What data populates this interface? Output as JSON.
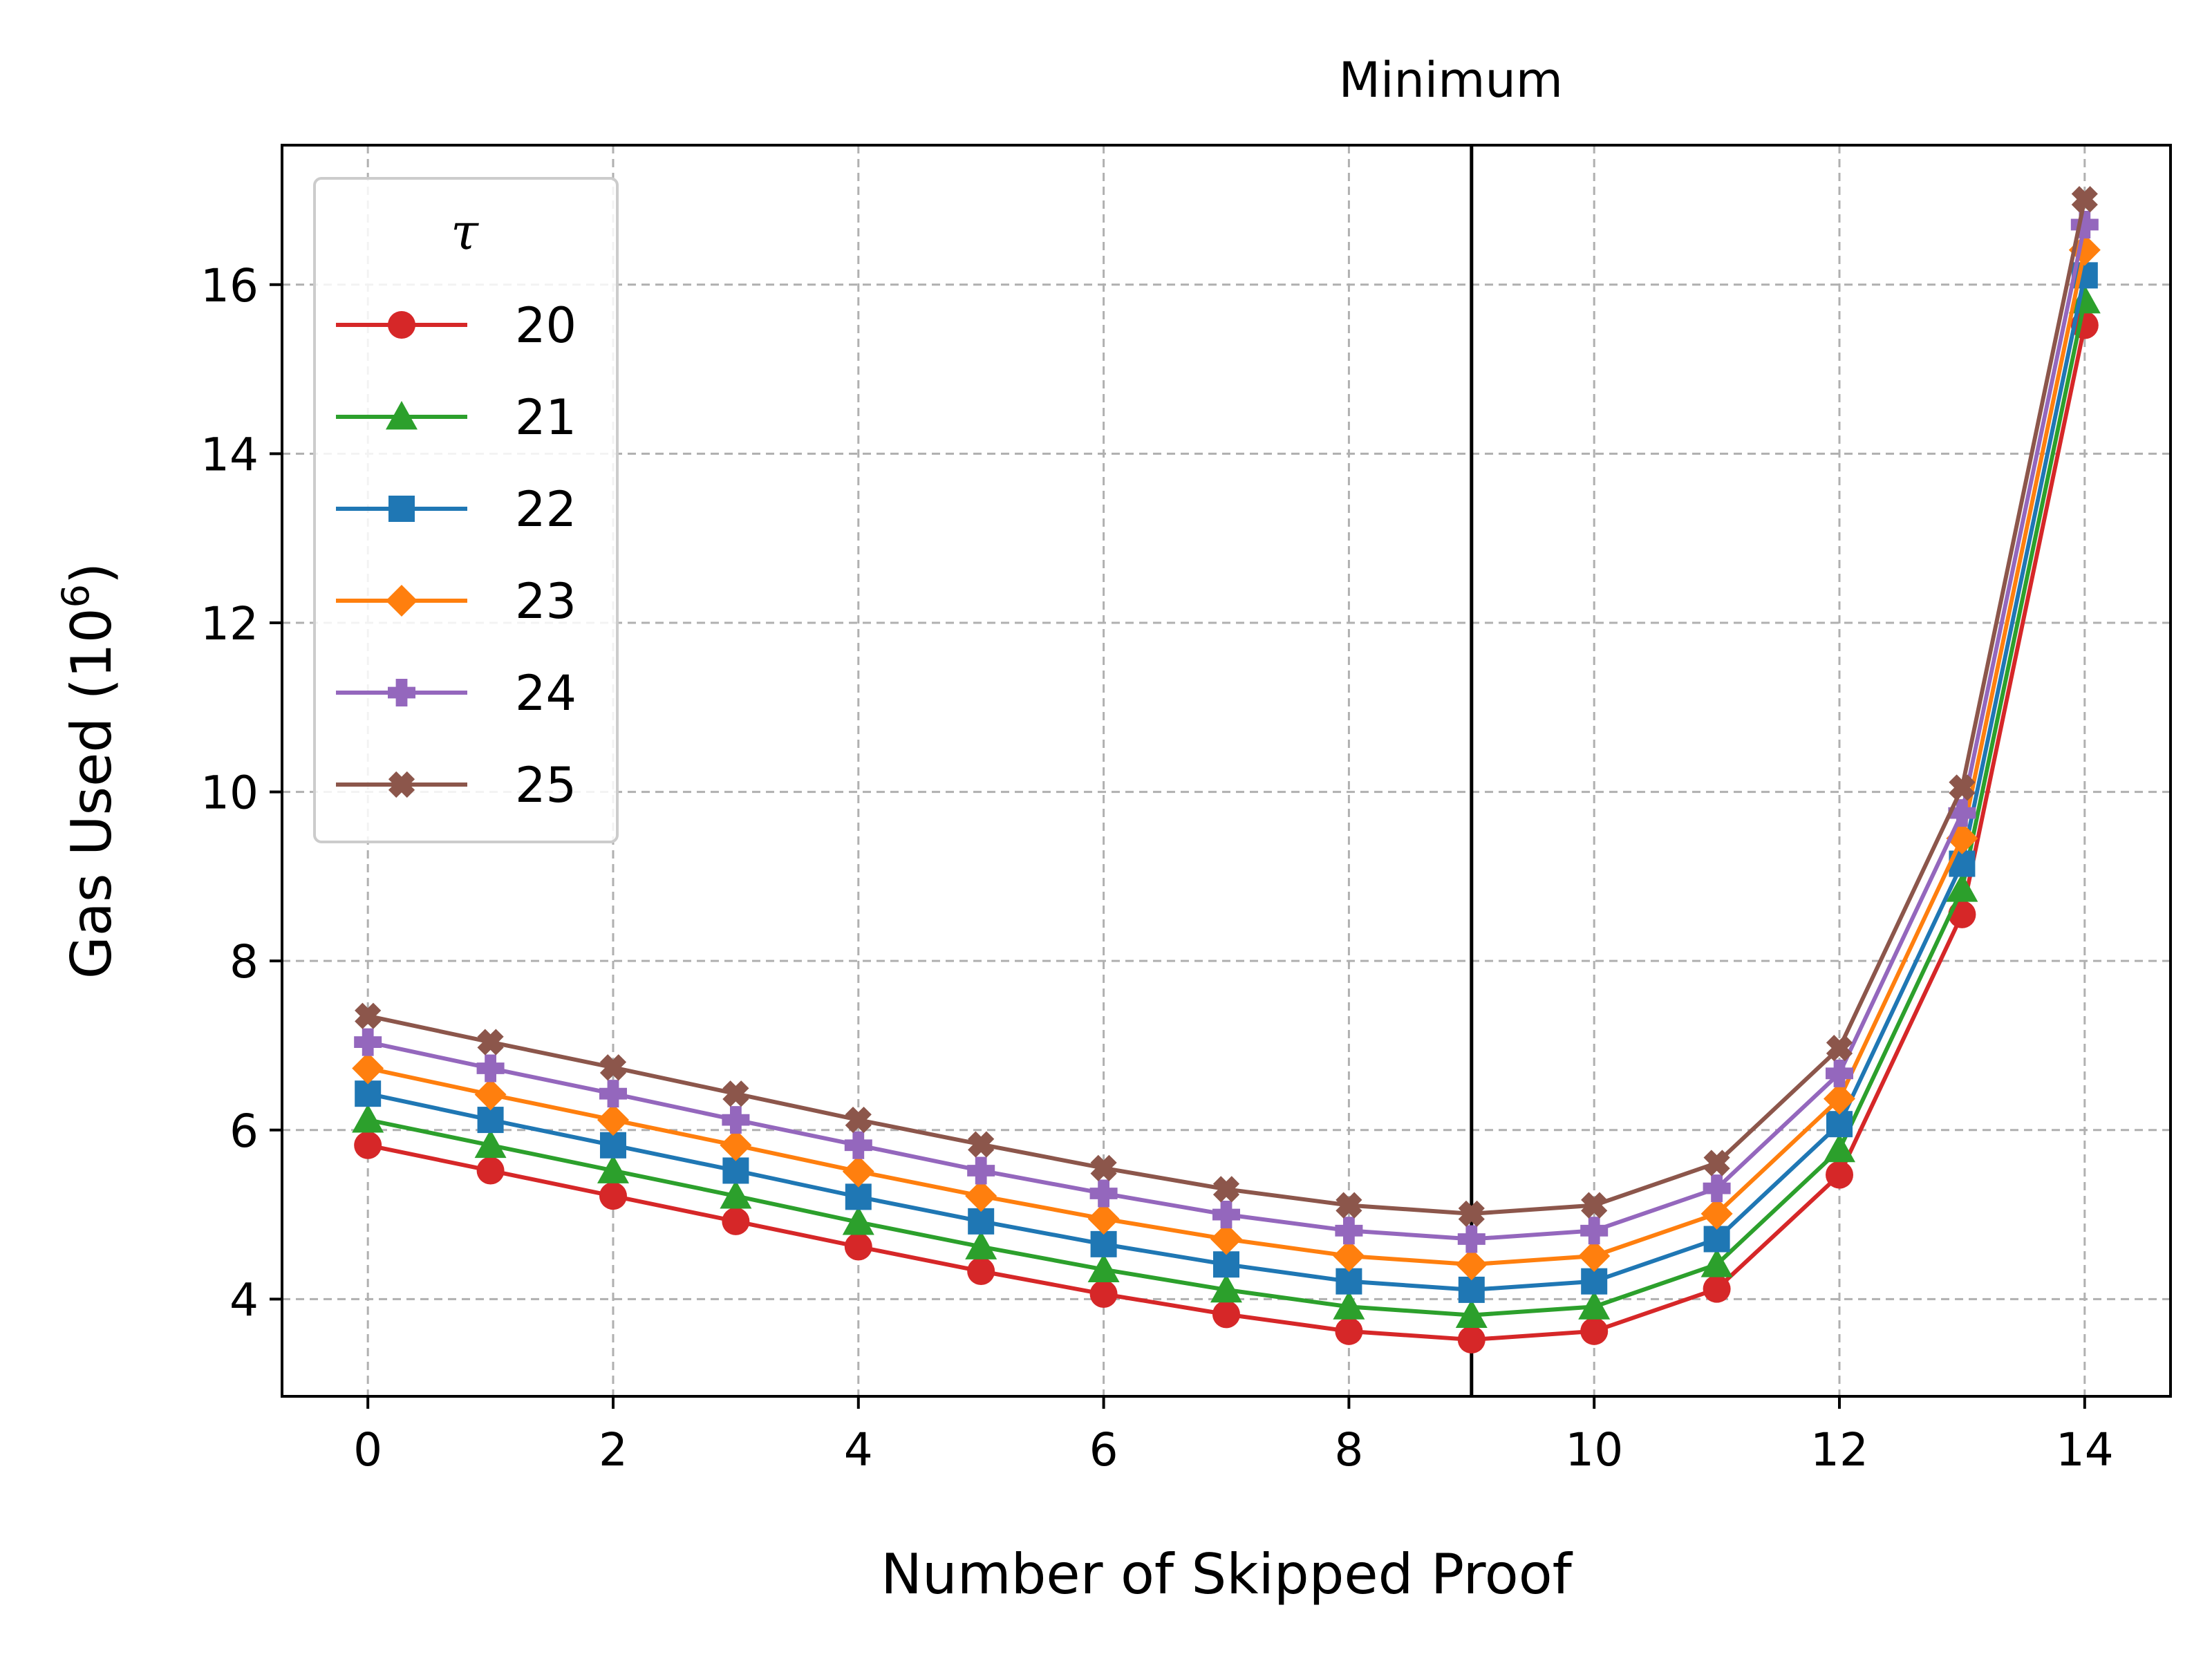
{
  "chart_data": {
    "type": "line",
    "xlabel": "Number of Skipped Proof",
    "ylabel_main": "Gas Used (10",
    "ylabel_exp": "6",
    "ylabel_close": ")",
    "xlim": [
      -0.7,
      14.7
    ],
    "ylim": [
      2.85,
      17.65
    ],
    "xticks": [
      0,
      2,
      4,
      6,
      8,
      10,
      12,
      14
    ],
    "yticks": [
      4,
      6,
      8,
      10,
      12,
      14,
      16
    ],
    "grid": true,
    "legend": {
      "title": "τ",
      "placement": "top-left"
    },
    "annotation": {
      "text": "Minimum",
      "x": 9
    },
    "x": [
      0,
      1,
      2,
      3,
      4,
      5,
      6,
      7,
      8,
      9,
      10,
      11,
      12,
      13,
      14
    ],
    "series": [
      {
        "name": "20",
        "color": "#d62728",
        "marker": "circle",
        "values": [
          5.82,
          5.52,
          5.22,
          4.92,
          4.62,
          4.33,
          4.06,
          3.82,
          3.62,
          3.52,
          3.62,
          4.12,
          5.47,
          8.55,
          15.52
        ]
      },
      {
        "name": "21",
        "color": "#2ca02c",
        "marker": "triangle",
        "values": [
          6.12,
          5.82,
          5.52,
          5.22,
          4.91,
          4.62,
          4.35,
          4.11,
          3.91,
          3.81,
          3.91,
          4.41,
          5.77,
          8.85,
          15.81
        ]
      },
      {
        "name": "22",
        "color": "#1f77b4",
        "marker": "square",
        "values": [
          6.43,
          6.12,
          5.82,
          5.52,
          5.21,
          4.92,
          4.65,
          4.41,
          4.21,
          4.11,
          4.21,
          4.71,
          6.07,
          9.15,
          16.11
        ]
      },
      {
        "name": "23",
        "color": "#ff7f0e",
        "marker": "diamond",
        "values": [
          6.73,
          6.42,
          6.12,
          5.82,
          5.51,
          5.22,
          4.95,
          4.71,
          4.51,
          4.41,
          4.51,
          5.01,
          6.37,
          9.45,
          16.41
        ]
      },
      {
        "name": "24",
        "color": "#9467bd",
        "marker": "plus",
        "values": [
          7.04,
          6.73,
          6.43,
          6.12,
          5.82,
          5.52,
          5.25,
          5.0,
          4.81,
          4.71,
          4.81,
          5.31,
          6.67,
          9.75,
          16.71
        ]
      },
      {
        "name": "25",
        "color": "#8c564b",
        "marker": "x",
        "values": [
          7.35,
          7.04,
          6.74,
          6.43,
          6.12,
          5.83,
          5.55,
          5.3,
          5.11,
          5.01,
          5.11,
          5.61,
          6.97,
          10.05,
          17.01
        ]
      }
    ]
  }
}
